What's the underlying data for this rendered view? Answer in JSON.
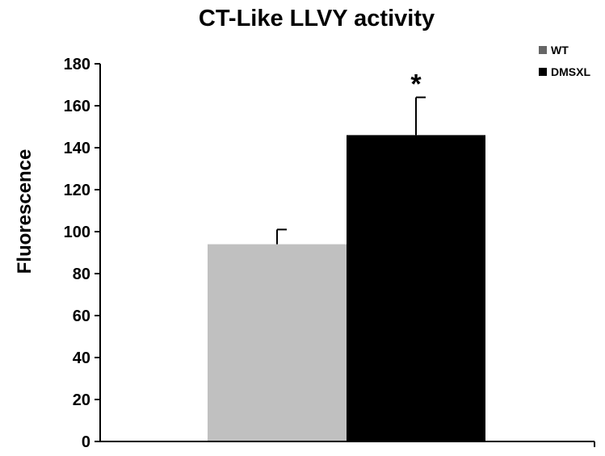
{
  "chart_data": {
    "type": "bar",
    "title": "CT-Like LLVY activity",
    "xlabel": "",
    "ylabel": "Fluorescence",
    "ylim": [
      0,
      180
    ],
    "yticks": [
      0,
      20,
      40,
      60,
      80,
      100,
      120,
      140,
      160,
      180
    ],
    "grid": false,
    "legend_position": "top-right",
    "series": [
      {
        "name": "WT",
        "value": 94,
        "error": 7,
        "color": "#c0c0c0",
        "legend_color": "#666666",
        "annotation": ""
      },
      {
        "name": "DMSXL",
        "value": 146,
        "error": 18,
        "color": "#000000",
        "legend_color": "#000000",
        "annotation": "*"
      }
    ]
  }
}
